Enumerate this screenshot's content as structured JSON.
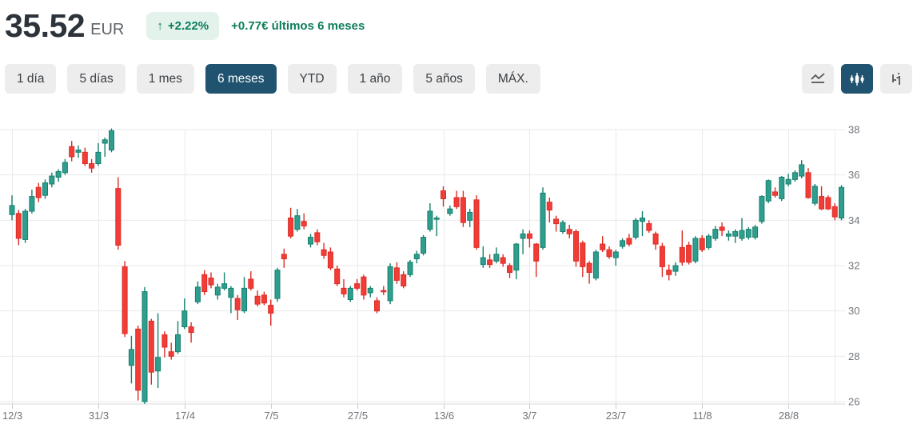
{
  "header": {
    "price": "35.52",
    "currency": "EUR",
    "badge_arrow": "↑",
    "change_percent": "+2.22%",
    "change_text": "+0.77€ últimos 6 meses"
  },
  "ranges": [
    {
      "label": "1 día",
      "selected": false
    },
    {
      "label": "5 días",
      "selected": false
    },
    {
      "label": "1 mes",
      "selected": false
    },
    {
      "label": "6 meses",
      "selected": true
    },
    {
      "label": "YTD",
      "selected": false
    },
    {
      "label": "1 año",
      "selected": false
    },
    {
      "label": "5 años",
      "selected": false
    },
    {
      "label": "MÁX.",
      "selected": false
    }
  ],
  "chart_type_buttons": [
    {
      "icon": "line-chart-icon",
      "selected": false
    },
    {
      "icon": "candlestick-icon",
      "selected": true
    },
    {
      "icon": "ohlc-bars-icon",
      "selected": false
    }
  ],
  "colors": {
    "accent_green_text": "#0c7d5b",
    "badge_bg": "#e4f2ec",
    "selected_btn_bg": "#20536f",
    "candle_up_fill": "#2f9e8e",
    "candle_up_stroke": "#16806f",
    "candle_down_fill": "#f23c37",
    "candle_down_stroke": "#dd2c26",
    "grid": "#e9eaec",
    "axis_line": "#d7d9db",
    "axis_text": "#71767b"
  },
  "chart_data": {
    "type": "candlestick",
    "title": "",
    "xlabel": "",
    "ylabel": "",
    "y_range": [
      26,
      38
    ],
    "y_ticks": [
      "38",
      "36",
      "34",
      "32",
      "30",
      "28",
      "26"
    ],
    "y_tick_values": [
      38,
      36,
      34,
      32,
      30,
      28,
      26
    ],
    "x_ticks": [
      "12/3",
      "31/3",
      "17/4",
      "7/5",
      "27/5",
      "13/6",
      "3/7",
      "23/7",
      "11/8",
      "28/8"
    ],
    "x_tick_indices": [
      0,
      13,
      26,
      39,
      52,
      65,
      78,
      91,
      104,
      117
    ],
    "grid": true,
    "candles_ohlc": [
      [
        34.25,
        35.1,
        34.0,
        34.65
      ],
      [
        34.3,
        34.45,
        32.9,
        33.2
      ],
      [
        33.15,
        34.5,
        33.0,
        34.4
      ],
      [
        34.4,
        35.35,
        34.3,
        35.05
      ],
      [
        35.45,
        35.65,
        34.8,
        35.0
      ],
      [
        35.1,
        35.8,
        34.95,
        35.65
      ],
      [
        35.6,
        36.1,
        35.45,
        35.95
      ],
      [
        35.9,
        36.25,
        35.7,
        36.15
      ],
      [
        36.1,
        36.7,
        36.0,
        36.55
      ],
      [
        37.25,
        37.5,
        36.6,
        36.8
      ],
      [
        37.0,
        37.3,
        36.75,
        37.1
      ],
      [
        37.0,
        37.2,
        36.4,
        36.5
      ],
      [
        36.5,
        36.7,
        36.1,
        36.3
      ],
      [
        36.5,
        37.4,
        36.4,
        37.0
      ],
      [
        37.4,
        37.65,
        36.8,
        37.55
      ],
      [
        37.1,
        38.05,
        37.0,
        37.95
      ],
      [
        35.4,
        35.9,
        32.7,
        32.9
      ],
      [
        31.95,
        32.2,
        28.85,
        29.0
      ],
      [
        27.6,
        28.9,
        26.8,
        28.3
      ],
      [
        29.2,
        29.35,
        26.05,
        26.5
      ],
      [
        26.0,
        31.05,
        25.9,
        30.85
      ],
      [
        29.55,
        29.65,
        26.75,
        27.3
      ],
      [
        27.35,
        29.9,
        26.6,
        27.95
      ],
      [
        28.95,
        29.1,
        27.95,
        28.4
      ],
      [
        28.2,
        28.6,
        27.85,
        28.0
      ],
      [
        28.2,
        29.55,
        28.1,
        28.95
      ],
      [
        29.3,
        30.55,
        29.2,
        30.0
      ],
      [
        29.3,
        29.5,
        28.6,
        29.05
      ],
      [
        30.4,
        31.3,
        30.3,
        31.05
      ],
      [
        31.6,
        31.8,
        30.7,
        30.85
      ],
      [
        31.45,
        31.7,
        31.0,
        31.15
      ],
      [
        30.7,
        31.2,
        30.5,
        31.05
      ],
      [
        31.0,
        31.7,
        30.9,
        31.2
      ],
      [
        30.6,
        31.1,
        29.9,
        31.0
      ],
      [
        30.55,
        30.7,
        29.6,
        30.05
      ],
      [
        30.0,
        31.5,
        29.9,
        31.0
      ],
      [
        31.4,
        31.75,
        30.9,
        31.0
      ],
      [
        30.65,
        30.9,
        30.2,
        30.3
      ],
      [
        30.7,
        30.85,
        30.25,
        30.35
      ],
      [
        30.25,
        30.5,
        29.35,
        29.9
      ],
      [
        30.55,
        31.9,
        30.4,
        31.8
      ],
      [
        32.5,
        32.75,
        31.9,
        32.3
      ],
      [
        34.1,
        34.55,
        33.2,
        33.3
      ],
      [
        33.6,
        34.5,
        33.5,
        34.2
      ],
      [
        33.95,
        34.3,
        33.6,
        33.75
      ],
      [
        32.95,
        33.4,
        32.8,
        33.25
      ],
      [
        33.45,
        33.6,
        32.9,
        33.05
      ],
      [
        32.7,
        33.0,
        32.3,
        32.45
      ],
      [
        32.6,
        32.8,
        31.8,
        31.9
      ],
      [
        31.85,
        32.0,
        31.1,
        31.2
      ],
      [
        31.0,
        31.4,
        30.6,
        30.75
      ],
      [
        30.5,
        31.1,
        30.4,
        31.0
      ],
      [
        31.2,
        31.4,
        30.9,
        31.0
      ],
      [
        31.5,
        31.6,
        30.5,
        30.7
      ],
      [
        30.8,
        31.1,
        30.6,
        31.0
      ],
      [
        30.45,
        30.6,
        29.9,
        30.0
      ],
      [
        30.9,
        31.1,
        30.7,
        30.85
      ],
      [
        30.45,
        32.1,
        30.3,
        31.95
      ],
      [
        31.9,
        32.15,
        31.2,
        31.35
      ],
      [
        31.6,
        31.75,
        31.0,
        31.1
      ],
      [
        31.6,
        32.25,
        31.5,
        32.15
      ],
      [
        32.3,
        32.65,
        32.1,
        32.5
      ],
      [
        32.55,
        33.35,
        32.45,
        33.25
      ],
      [
        33.6,
        34.75,
        33.5,
        34.4
      ],
      [
        34.05,
        34.2,
        33.3,
        34.1
      ],
      [
        35.3,
        35.5,
        34.6,
        34.95
      ],
      [
        34.3,
        34.65,
        34.2,
        34.5
      ],
      [
        35.0,
        35.3,
        34.5,
        34.6
      ],
      [
        35.0,
        35.3,
        33.7,
        33.9
      ],
      [
        34.0,
        34.5,
        33.7,
        34.35
      ],
      [
        34.9,
        35.1,
        32.7,
        32.8
      ],
      [
        32.05,
        32.85,
        31.9,
        32.35
      ],
      [
        32.25,
        32.5,
        31.9,
        32.05
      ],
      [
        32.2,
        32.8,
        32.1,
        32.5
      ],
      [
        32.35,
        32.5,
        31.95,
        32.1
      ],
      [
        32.0,
        32.1,
        31.45,
        31.7
      ],
      [
        31.8,
        33.0,
        31.4,
        32.95
      ],
      [
        33.2,
        33.6,
        32.5,
        33.4
      ],
      [
        33.4,
        33.55,
        32.8,
        33.2
      ],
      [
        32.95,
        33.0,
        31.5,
        32.2
      ],
      [
        32.8,
        35.45,
        32.7,
        35.2
      ],
      [
        34.8,
        35.0,
        33.9,
        34.45
      ],
      [
        34.05,
        34.2,
        33.5,
        33.85
      ],
      [
        33.5,
        34.0,
        33.4,
        33.9
      ],
      [
        33.6,
        33.8,
        33.2,
        33.4
      ],
      [
        33.5,
        33.6,
        31.95,
        32.2
      ],
      [
        33.0,
        33.1,
        31.5,
        31.95
      ],
      [
        32.1,
        32.2,
        31.2,
        31.7
      ],
      [
        31.45,
        32.7,
        31.35,
        32.6
      ],
      [
        32.95,
        33.3,
        32.6,
        32.7
      ],
      [
        32.7,
        32.85,
        32.3,
        32.4
      ],
      [
        32.35,
        32.7,
        32.0,
        32.6
      ],
      [
        32.85,
        33.2,
        32.75,
        33.1
      ],
      [
        33.2,
        33.4,
        32.85,
        32.95
      ],
      [
        33.25,
        34.1,
        33.15,
        34.0
      ],
      [
        33.95,
        34.4,
        33.3,
        34.1
      ],
      [
        33.85,
        34.0,
        33.45,
        33.55
      ],
      [
        33.4,
        33.5,
        32.7,
        32.95
      ],
      [
        32.85,
        33.0,
        31.5,
        31.95
      ],
      [
        31.8,
        32.05,
        31.35,
        31.6
      ],
      [
        31.75,
        32.15,
        31.55,
        32.0
      ],
      [
        32.8,
        33.55,
        32.0,
        32.15
      ],
      [
        32.9,
        33.05,
        32.05,
        32.15
      ],
      [
        32.2,
        33.3,
        32.1,
        33.2
      ],
      [
        33.2,
        33.35,
        32.6,
        32.7
      ],
      [
        32.8,
        33.4,
        32.7,
        33.3
      ],
      [
        33.2,
        33.75,
        33.1,
        33.6
      ],
      [
        33.7,
        33.9,
        33.3,
        33.55
      ],
      [
        33.3,
        33.55,
        33.1,
        33.4
      ],
      [
        33.3,
        33.6,
        33.0,
        33.5
      ],
      [
        33.2,
        34.1,
        33.1,
        33.55
      ],
      [
        33.25,
        33.7,
        33.15,
        33.6
      ],
      [
        33.25,
        33.8,
        33.15,
        33.7
      ],
      [
        33.95,
        35.1,
        33.85,
        35.05
      ],
      [
        34.85,
        35.8,
        34.75,
        35.75
      ],
      [
        35.25,
        35.45,
        35.0,
        35.1
      ],
      [
        34.95,
        35.95,
        34.85,
        35.9
      ],
      [
        35.6,
        36.05,
        35.5,
        35.8
      ],
      [
        35.8,
        36.2,
        35.7,
        36.1
      ],
      [
        35.95,
        36.65,
        35.85,
        36.45
      ],
      [
        36.1,
        36.3,
        34.95,
        35.0
      ],
      [
        34.75,
        35.6,
        34.65,
        35.5
      ],
      [
        35.05,
        35.5,
        34.45,
        34.5
      ],
      [
        35.0,
        35.1,
        34.45,
        34.5
      ],
      [
        34.6,
        34.75,
        34.0,
        34.15
      ],
      [
        34.1,
        35.55,
        34.0,
        35.45
      ]
    ]
  }
}
